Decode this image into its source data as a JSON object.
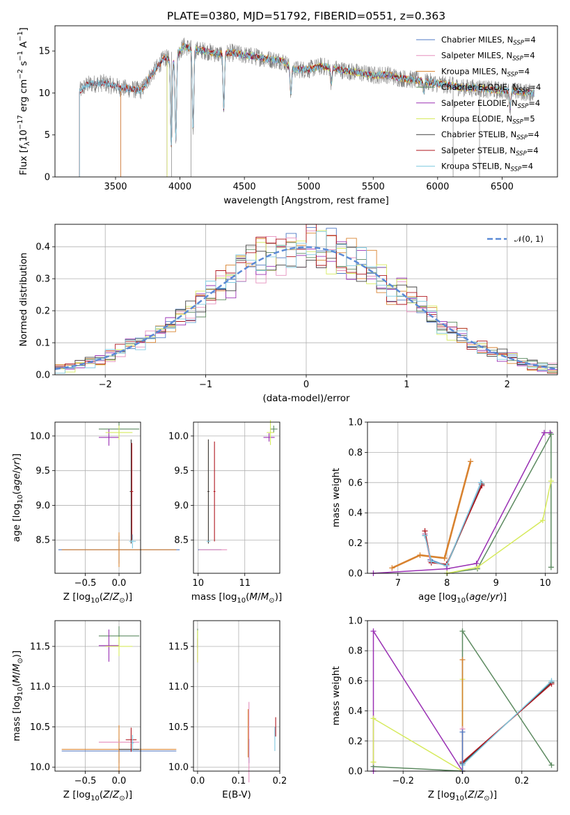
{
  "figure": {
    "title": "PLATE=0380, MJD=51792, FIBERID=0551, z=0.363"
  },
  "colors": {
    "chabrier_miles": "#4f79c4",
    "salpeter_miles": "#e58fbd",
    "kroupa_miles": "#d8822f",
    "chabrier_elodie": "#5c8a60",
    "salpeter_elodie": "#9a31b4",
    "kroupa_elodie": "#d6ea5c",
    "chabrier_stelib": "#404040",
    "salpeter_stelib": "#b0171f",
    "kroupa_stelib": "#7fc9e0",
    "data": "#808080",
    "normal": "#5b8ad6",
    "grid": "#b0b0b0"
  },
  "chart_data": [
    {
      "id": "spectrum",
      "type": "line",
      "xlabel": "wavelength [Angstrom, rest frame]",
      "ylabel": "Flux [f_λ10^-17 erg cm^-2 s^-1 A^-1]",
      "xlim": [
        3030,
        6930
      ],
      "ylim": [
        0,
        18
      ],
      "xticks": [
        3500,
        4000,
        4500,
        5000,
        5500,
        6000,
        6500
      ],
      "yticks": [
        0,
        5,
        10,
        15
      ],
      "grid": false,
      "legend_position": "top-right",
      "series": [
        {
          "name": "Chabrier MILES, N_SSP=4",
          "key": "chabrier_miles"
        },
        {
          "name": "Salpeter MILES, N_SSP=4",
          "key": "salpeter_miles"
        },
        {
          "name": "Kroupa MILES, N_SSP=4",
          "key": "kroupa_miles"
        },
        {
          "name": "Chabrier ELODIE, N_SSP=4",
          "key": "chabrier_elodie"
        },
        {
          "name": "Salpeter ELODIE, N_SSP=4",
          "key": "salpeter_elodie"
        },
        {
          "name": "Kroupa ELODIE, N_SSP=5",
          "key": "kroupa_elodie"
        },
        {
          "name": "Chabrier STELIB, N_SSP=4",
          "key": "chabrier_stelib"
        },
        {
          "name": "Salpeter STELIB, N_SSP=4",
          "key": "salpeter_stelib"
        },
        {
          "name": "Kroupa STELIB, N_SSP=4",
          "key": "kroupa_stelib"
        }
      ],
      "continuum": {
        "x": [
          3220,
          3280,
          3400,
          3500,
          3540,
          3600,
          3700,
          3760,
          3820,
          3880,
          3950,
          3980,
          4030,
          4100,
          4200,
          4300,
          4400,
          4500,
          4600,
          4700,
          4800,
          4860,
          4900,
          5000,
          5100,
          5200,
          5300,
          5400,
          5500,
          5600,
          5700,
          5800,
          5900,
          6000,
          6100,
          6200,
          6300,
          6400,
          6500,
          6600,
          6750
        ],
        "y": [
          10.2,
          11.0,
          11.2,
          10.8,
          10.6,
          10.5,
          10.3,
          11.8,
          13.0,
          14.2,
          13.8,
          14.6,
          15.6,
          15.2,
          15.0,
          14.6,
          14.8,
          14.5,
          14.3,
          14.0,
          13.8,
          13.0,
          12.8,
          12.8,
          13.2,
          12.9,
          12.6,
          12.4,
          12.1,
          12.2,
          11.8,
          11.6,
          11.4,
          11.1,
          10.9,
          10.6,
          10.6,
          10.4,
          10.3,
          10.2,
          10.0
        ]
      },
      "model_start": {
        "miles": 3540,
        "elodie": 3900,
        "stelib": 3220
      }
    },
    {
      "id": "residuals",
      "type": "line",
      "xlabel": "(data-model)/error",
      "ylabel": "Normed distribution",
      "xlim": [
        -2.5,
        2.5
      ],
      "ylim": [
        0,
        0.47
      ],
      "xticks": [
        -2,
        -1,
        0,
        1,
        2
      ],
      "yticks": [
        0.0,
        0.1,
        0.2,
        0.3,
        0.4
      ],
      "grid": true,
      "legend_position": "top-right",
      "series": [
        {
          "name": "𝒩(0, 1)",
          "key": "normal",
          "style": "dashed"
        }
      ],
      "bins": {
        "start": -2.5,
        "width": 0.1,
        "count": 50
      }
    },
    {
      "id": "age-vs-Z",
      "type": "scatter",
      "xlabel": "Z [log10(Z/Z⊙)]",
      "ylabel": "age  [log10(age/yr)]",
      "xlim": [
        -0.95,
        0.32
      ],
      "ylim": [
        8.02,
        10.2
      ],
      "xticks": [
        -0.5,
        0.0
      ],
      "xticklabels": [
        "−0.5",
        "0.0"
      ],
      "yticks": [
        8.5,
        9.0,
        9.5,
        10.0
      ],
      "grid": true,
      "points": [
        {
          "key": "chabrier_miles",
          "x": 0.0,
          "y": 8.36,
          "xerr": 0.9,
          "yerr": 0.2
        },
        {
          "key": "kroupa_miles",
          "x": 0.0,
          "y": 8.36,
          "xerr": 0.85,
          "yerr": 0.25
        },
        {
          "key": "chabrier_elodie",
          "x": 0.0,
          "y": 10.1,
          "xerr": 0.3,
          "yerr": 0.1
        },
        {
          "key": "salpeter_elodie",
          "x": -0.15,
          "y": 9.98,
          "xerr": 0.15,
          "yerr": 0.12
        },
        {
          "key": "kroupa_elodie",
          "x": 0.0,
          "y": 10.05,
          "xerr": 0.2,
          "yerr": 0.1
        },
        {
          "key": "chabrier_stelib",
          "x": 0.18,
          "y": 9.2,
          "xerr": 0.02,
          "yerr": 0.75
        },
        {
          "key": "salpeter_stelib",
          "x": 0.19,
          "y": 9.2,
          "xerr": 0.02,
          "yerr": 0.7
        },
        {
          "key": "kroupa_stelib",
          "x": 0.2,
          "y": 8.48,
          "xerr": 0.05,
          "yerr": 0.1
        }
      ]
    },
    {
      "id": "age-vs-mass",
      "type": "scatter",
      "xlabel": "mass [log10(M/M⊙)]",
      "ylabel": "",
      "xlim": [
        9.9,
        11.75
      ],
      "ylim": [
        8.02,
        10.2
      ],
      "xticks": [
        10,
        11
      ],
      "yticks": [
        8.5,
        9.0,
        9.5,
        10.0
      ],
      "grid": true,
      "points": [
        {
          "key": "chabrier_miles",
          "x": 10.25,
          "y": 8.36,
          "xerr": 0.25,
          "yerr": 0.0
        },
        {
          "key": "salpeter_miles",
          "x": 10.32,
          "y": 8.36,
          "xerr": 0.3,
          "yerr": 0.0
        },
        {
          "key": "kroupa_miles",
          "x": 10.22,
          "y": 9.2,
          "xerr": 0.02,
          "yerr": 0.75
        },
        {
          "key": "chabrier_stelib",
          "x": 10.22,
          "y": 9.2,
          "xerr": 0.02,
          "yerr": 0.75
        },
        {
          "key": "salpeter_stelib",
          "x": 10.35,
          "y": 9.2,
          "xerr": 0.02,
          "yerr": 0.72
        },
        {
          "key": "kroupa_stelib",
          "x": 10.22,
          "y": 8.48,
          "xerr": 0.04,
          "yerr": 0.0
        },
        {
          "key": "chabrier_elodie",
          "x": 11.62,
          "y": 10.1,
          "xerr": 0.08,
          "yerr": 0.05
        },
        {
          "key": "salpeter_elodie",
          "x": 11.52,
          "y": 9.98,
          "xerr": 0.12,
          "yerr": 0.06
        },
        {
          "key": "kroupa_elodie",
          "x": 11.55,
          "y": 10.05,
          "xerr": 0.08,
          "yerr": 0.18
        }
      ]
    },
    {
      "id": "weight-vs-age",
      "type": "line",
      "xlabel": "age  [log10(age/yr)]",
      "ylabel": "mass weight",
      "xlim": [
        6.38,
        10.25
      ],
      "ylim": [
        0,
        1.0
      ],
      "xticks": [
        7,
        8,
        9,
        10
      ],
      "yticks": [
        0.0,
        0.2,
        0.4,
        0.6,
        0.8,
        1.0
      ],
      "grid": true,
      "series": [
        {
          "key": "kroupa_miles",
          "width": 2.6,
          "x": [
            6.88,
            7.45,
            7.95,
            8.48
          ],
          "y": [
            0.035,
            0.12,
            0.1,
            0.74
          ]
        },
        {
          "key": "chabrier_miles",
          "x": [
            7.55,
            7.66,
            7.99,
            8.69
          ],
          "y": [
            0.26,
            0.09,
            0.05,
            0.6
          ]
        },
        {
          "key": "salpeter_miles",
          "x": [
            7.55,
            7.66,
            7.99,
            8.7
          ],
          "y": [
            0.26,
            0.08,
            0.05,
            0.59
          ]
        },
        {
          "key": "chabrier_stelib",
          "x": [
            7.55,
            7.68,
            7.99,
            8.71
          ],
          "y": [
            0.25,
            0.08,
            0.05,
            0.59
          ]
        },
        {
          "key": "salpeter_stelib",
          "x": [
            7.55,
            7.68,
            7.99,
            8.71
          ],
          "y": [
            0.28,
            0.07,
            0.06,
            0.58
          ]
        },
        {
          "key": "kroupa_stelib",
          "x": [
            7.55,
            7.68,
            7.99,
            8.69
          ],
          "y": [
            0.25,
            0.08,
            0.05,
            0.6
          ]
        },
        {
          "key": "salpeter_elodie",
          "x": [
            6.5,
            8.0,
            8.6,
            9.98,
            10.1
          ],
          "y": [
            0.0,
            0.03,
            0.065,
            0.93,
            0.93
          ]
        },
        {
          "key": "chabrier_elodie",
          "x": [
            8.0,
            8.62,
            10.12,
            10.12
          ],
          "y": [
            0.0,
            0.03,
            0.92,
            0.04
          ]
        },
        {
          "key": "kroupa_elodie",
          "x": [
            8.0,
            8.62,
            9.95,
            10.12
          ],
          "y": [
            0.0,
            0.04,
            0.35,
            0.61
          ]
        }
      ]
    },
    {
      "id": "mass-vs-Z",
      "type": "scatter",
      "xlabel": "Z [log10(Z/Z⊙)]",
      "ylabel": "mass [log10(M/M⊙)]",
      "xlim": [
        -0.95,
        0.32
      ],
      "ylim": [
        9.95,
        11.82
      ],
      "xticks": [
        -0.5,
        0.0
      ],
      "xticklabels": [
        "−0.5",
        "0.0"
      ],
      "yticks": [
        10.0,
        10.5,
        11.0,
        11.5
      ],
      "grid": true,
      "points": [
        {
          "key": "chabrier_miles",
          "x": 0.0,
          "y": 10.2,
          "xerr": 0.85,
          "yerr": 0.15
        },
        {
          "key": "kroupa_miles",
          "x": 0.0,
          "y": 10.22,
          "xerr": 0.85,
          "yerr": 0.3
        },
        {
          "key": "salpeter_miles",
          "x": 0.0,
          "y": 10.31,
          "xerr": 0.3,
          "yerr": 0.0
        },
        {
          "key": "chabrier_elodie",
          "x": 0.0,
          "y": 11.63,
          "xerr": 0.3,
          "yerr": 0.12
        },
        {
          "key": "salpeter_elodie",
          "x": -0.15,
          "y": 11.51,
          "xerr": 0.15,
          "yerr": 0.2
        },
        {
          "key": "kroupa_elodie",
          "x": 0.0,
          "y": 11.5,
          "xerr": 0.2,
          "yerr": 0.12
        },
        {
          "key": "chabrier_stelib",
          "x": 0.15,
          "y": 10.22,
          "xerr": 0.15,
          "yerr": 0.0
        },
        {
          "key": "salpeter_stelib",
          "x": 0.18,
          "y": 10.34,
          "xerr": 0.08,
          "yerr": 0.15
        },
        {
          "key": "kroupa_stelib",
          "x": 0.2,
          "y": 10.3,
          "xerr": 0.02,
          "yerr": 0.1
        }
      ]
    },
    {
      "id": "mass-vs-EBV",
      "type": "scatter",
      "xlabel": "E(B-V)",
      "ylabel": "",
      "xlim": [
        -0.01,
        0.2
      ],
      "ylim": [
        9.95,
        11.82
      ],
      "xticks": [
        0.0,
        0.1,
        0.2
      ],
      "yticks": [
        10.0,
        10.5,
        11.0,
        11.5
      ],
      "grid": true,
      "points": [
        {
          "key": "chabrier_miles",
          "x": 0.125,
          "y": 10.2,
          "xerr": 0.0,
          "yerr": 0.15
        },
        {
          "key": "salpeter_miles",
          "x": 0.125,
          "y": 10.31,
          "xerr": 0.0,
          "yerr": 0.5
        },
        {
          "key": "kroupa_miles",
          "x": 0.123,
          "y": 10.42,
          "xerr": 0.0,
          "yerr": 0.3
        },
        {
          "key": "chabrier_elodie",
          "x": 0.0,
          "y": 11.6,
          "xerr": 0.0,
          "yerr": 0.12
        },
        {
          "key": "salpeter_elodie",
          "x": 0.0,
          "y": 11.45,
          "xerr": 0.0,
          "yerr": 0.15
        },
        {
          "key": "kroupa_elodie",
          "x": 0.0,
          "y": 11.5,
          "xerr": 0.0,
          "yerr": 0.2
        },
        {
          "key": "salpeter_stelib",
          "x": 0.19,
          "y": 10.5,
          "xerr": 0.0,
          "yerr": 0.12
        },
        {
          "key": "kroupa_stelib",
          "x": 0.188,
          "y": 10.35,
          "xerr": 0.0,
          "yerr": 0.15
        }
      ]
    },
    {
      "id": "weight-vs-Z",
      "type": "line",
      "xlabel": "Z [log10(Z/Z⊙)]",
      "ylabel": "mass weight",
      "xlim": [
        -0.32,
        0.32
      ],
      "ylim": [
        0,
        1.0
      ],
      "xticks": [
        -0.2,
        0.0,
        0.2
      ],
      "xticklabels": [
        "−0.2",
        "0.0",
        "0.2"
      ],
      "yticks": [
        0.0,
        0.2,
        0.4,
        0.6,
        0.8,
        1.0
      ],
      "grid": true,
      "series": [
        {
          "key": "salpeter_elodie",
          "x": [
            -0.3,
            -0.3,
            0.0
          ],
          "y": [
            0.0,
            0.93,
            0.0
          ]
        },
        {
          "key": "chabrier_elodie",
          "x": [
            -0.3,
            0.0,
            0.0,
            0.3
          ],
          "y": [
            0.03,
            0.0,
            0.93,
            0.04
          ]
        },
        {
          "key": "kroupa_elodie",
          "x": [
            -0.3,
            -0.3,
            0.0,
            0.0
          ],
          "y": [
            0.06,
            0.35,
            0.0,
            0.61
          ]
        },
        {
          "key": "chabrier_stelib",
          "x": [
            0.0,
            0.3
          ],
          "y": [
            0.05,
            0.59
          ]
        },
        {
          "key": "salpeter_stelib",
          "x": [
            0.0,
            0.3
          ],
          "y": [
            0.06,
            0.58
          ]
        },
        {
          "key": "kroupa_stelib",
          "x": [
            0.0,
            0.3
          ],
          "y": [
            0.04,
            0.6
          ]
        },
        {
          "key": "kroupa_miles",
          "x": [
            0.0,
            0.0
          ],
          "y": [
            0.0,
            0.74
          ]
        },
        {
          "key": "salpeter_miles",
          "x": [
            0.0,
            0.0
          ],
          "y": [
            0.0,
            0.28
          ]
        },
        {
          "key": "chabrier_miles",
          "x": [
            0.0,
            0.0
          ],
          "y": [
            0.0,
            0.26
          ]
        }
      ]
    }
  ]
}
